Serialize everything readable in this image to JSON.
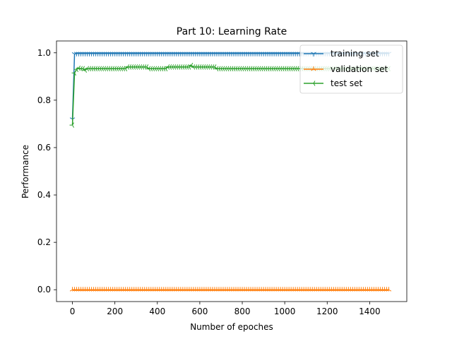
{
  "chart_data": {
    "type": "line",
    "title": "Part 10: Learning Rate",
    "xlabel": "Number of epoches",
    "ylabel": "Performance",
    "xlim": [
      -75,
      1575
    ],
    "ylim": [
      -0.05,
      1.05
    ],
    "xticks": [
      0,
      200,
      400,
      600,
      800,
      1000,
      1200,
      1400
    ],
    "xtick_labels": [
      "0",
      "200",
      "400",
      "600",
      "800",
      "1000",
      "1200",
      "1400"
    ],
    "yticks": [
      0.0,
      0.2,
      0.4,
      0.6,
      0.8,
      1.0
    ],
    "ytick_labels": [
      "0.0",
      "0.2",
      "0.4",
      "0.6",
      "0.8",
      "1.0"
    ],
    "legend_position": "top-right",
    "series": [
      {
        "name": "training set",
        "color": "#1f77b4",
        "marker": "tri_down",
        "x": [
          0,
          10,
          20,
          30,
          40,
          50,
          60,
          70,
          80,
          90,
          100,
          110,
          120,
          130,
          140,
          150,
          160,
          170,
          180,
          190,
          200,
          210,
          220,
          230,
          240,
          250,
          260,
          270,
          280,
          290,
          300,
          310,
          320,
          330,
          340,
          350,
          360,
          370,
          380,
          390,
          400,
          410,
          420,
          430,
          440,
          450,
          460,
          470,
          480,
          490,
          500,
          510,
          520,
          530,
          540,
          550,
          560,
          570,
          580,
          590,
          600,
          610,
          620,
          630,
          640,
          650,
          660,
          670,
          680,
          690,
          700,
          710,
          720,
          730,
          740,
          750,
          760,
          770,
          780,
          790,
          800,
          810,
          820,
          830,
          840,
          850,
          860,
          870,
          880,
          890,
          900,
          910,
          920,
          930,
          940,
          950,
          960,
          970,
          980,
          990,
          1000,
          1010,
          1020,
          1030,
          1040,
          1050,
          1060,
          1070,
          1080,
          1090,
          1100,
          1110,
          1120,
          1130,
          1140,
          1150,
          1160,
          1170,
          1180,
          1190,
          1200,
          1210,
          1220,
          1230,
          1240,
          1250,
          1260,
          1270,
          1280,
          1290,
          1300,
          1310,
          1320,
          1330,
          1340,
          1350,
          1360,
          1370,
          1380,
          1390,
          1400,
          1410,
          1420,
          1430,
          1440,
          1450,
          1460,
          1470,
          1480,
          1490
        ],
        "values": [
          0.72,
          0.995,
          0.997,
          0.997,
          0.997,
          0.997,
          0.997,
          0.997,
          0.997,
          0.997,
          0.997,
          0.997,
          0.997,
          0.997,
          0.997,
          0.997,
          0.997,
          0.997,
          0.997,
          0.997,
          0.997,
          0.997,
          0.997,
          0.997,
          0.997,
          0.997,
          0.997,
          0.997,
          0.997,
          0.997,
          0.997,
          0.997,
          0.997,
          0.997,
          0.997,
          0.997,
          0.997,
          0.997,
          0.997,
          0.997,
          0.997,
          0.997,
          0.997,
          0.997,
          0.997,
          0.997,
          0.997,
          0.997,
          0.997,
          0.997,
          0.997,
          0.997,
          0.997,
          0.997,
          0.997,
          0.997,
          0.997,
          0.997,
          0.997,
          0.997,
          0.997,
          0.997,
          0.997,
          0.997,
          0.997,
          0.997,
          0.997,
          0.997,
          0.997,
          0.997,
          0.997,
          0.997,
          0.997,
          0.997,
          0.997,
          0.997,
          0.997,
          0.997,
          0.997,
          0.997,
          0.997,
          0.997,
          0.997,
          0.997,
          0.997,
          0.997,
          0.997,
          0.997,
          0.997,
          0.997,
          0.997,
          0.997,
          0.997,
          0.997,
          0.997,
          0.997,
          0.997,
          0.997,
          0.997,
          0.997,
          0.997,
          0.997,
          0.997,
          0.997,
          0.997,
          0.997,
          0.997,
          0.997,
          0.997,
          0.997,
          0.997,
          0.997,
          0.997,
          0.997,
          0.997,
          0.997,
          0.997,
          0.997,
          0.997,
          0.997,
          0.997,
          0.997,
          0.997,
          0.997,
          0.997,
          0.997,
          0.997,
          0.997,
          0.997,
          0.997,
          0.997,
          0.997,
          0.997,
          0.997,
          0.997,
          0.997,
          0.997,
          0.997,
          0.997,
          0.997,
          0.997,
          0.997,
          0.997,
          0.997,
          0.997,
          0.997,
          0.997,
          0.997,
          0.997,
          0.997
        ]
      },
      {
        "name": "validation set",
        "color": "#ff7f0e",
        "marker": "tri_up",
        "x": [
          0,
          10,
          20,
          30,
          40,
          50,
          60,
          70,
          80,
          90,
          100,
          110,
          120,
          130,
          140,
          150,
          160,
          170,
          180,
          190,
          200,
          210,
          220,
          230,
          240,
          250,
          260,
          270,
          280,
          290,
          300,
          310,
          320,
          330,
          340,
          350,
          360,
          370,
          380,
          390,
          400,
          410,
          420,
          430,
          440,
          450,
          460,
          470,
          480,
          490,
          500,
          510,
          520,
          530,
          540,
          550,
          560,
          570,
          580,
          590,
          600,
          610,
          620,
          630,
          640,
          650,
          660,
          670,
          680,
          690,
          700,
          710,
          720,
          730,
          740,
          750,
          760,
          770,
          780,
          790,
          800,
          810,
          820,
          830,
          840,
          850,
          860,
          870,
          880,
          890,
          900,
          910,
          920,
          930,
          940,
          950,
          960,
          970,
          980,
          990,
          1000,
          1010,
          1020,
          1030,
          1040,
          1050,
          1060,
          1070,
          1080,
          1090,
          1100,
          1110,
          1120,
          1130,
          1140,
          1150,
          1160,
          1170,
          1180,
          1190,
          1200,
          1210,
          1220,
          1230,
          1240,
          1250,
          1260,
          1270,
          1280,
          1290,
          1300,
          1310,
          1320,
          1330,
          1340,
          1350,
          1360,
          1370,
          1380,
          1390,
          1400,
          1410,
          1420,
          1430,
          1440,
          1450,
          1460,
          1470,
          1480,
          1490
        ],
        "values": [
          0.0,
          0.0,
          0.0,
          0.0,
          0.0,
          0.0,
          0.0,
          0.0,
          0.0,
          0.0,
          0.0,
          0.0,
          0.0,
          0.0,
          0.0,
          0.0,
          0.0,
          0.0,
          0.0,
          0.0,
          0.0,
          0.0,
          0.0,
          0.0,
          0.0,
          0.0,
          0.0,
          0.0,
          0.0,
          0.0,
          0.0,
          0.0,
          0.0,
          0.0,
          0.0,
          0.0,
          0.0,
          0.0,
          0.0,
          0.0,
          0.0,
          0.0,
          0.0,
          0.0,
          0.0,
          0.0,
          0.0,
          0.0,
          0.0,
          0.0,
          0.0,
          0.0,
          0.0,
          0.0,
          0.0,
          0.0,
          0.0,
          0.0,
          0.0,
          0.0,
          0.0,
          0.0,
          0.0,
          0.0,
          0.0,
          0.0,
          0.0,
          0.0,
          0.0,
          0.0,
          0.0,
          0.0,
          0.0,
          0.0,
          0.0,
          0.0,
          0.0,
          0.0,
          0.0,
          0.0,
          0.0,
          0.0,
          0.0,
          0.0,
          0.0,
          0.0,
          0.0,
          0.0,
          0.0,
          0.0,
          0.0,
          0.0,
          0.0,
          0.0,
          0.0,
          0.0,
          0.0,
          0.0,
          0.0,
          0.0,
          0.0,
          0.0,
          0.0,
          0.0,
          0.0,
          0.0,
          0.0,
          0.0,
          0.0,
          0.0,
          0.0,
          0.0,
          0.0,
          0.0,
          0.0,
          0.0,
          0.0,
          0.0,
          0.0,
          0.0,
          0.0,
          0.0,
          0.0,
          0.0,
          0.0,
          0.0,
          0.0,
          0.0,
          0.0,
          0.0,
          0.0,
          0.0,
          0.0,
          0.0,
          0.0,
          0.0,
          0.0,
          0.0,
          0.0,
          0.0,
          0.0,
          0.0,
          0.0,
          0.0,
          0.0,
          0.0,
          0.0,
          0.0,
          0.0,
          0.0
        ]
      },
      {
        "name": "test set",
        "color": "#2ca02c",
        "marker": "tri_left",
        "x": [
          0,
          10,
          20,
          30,
          40,
          50,
          60,
          70,
          80,
          90,
          100,
          110,
          120,
          130,
          140,
          150,
          160,
          170,
          180,
          190,
          200,
          210,
          220,
          230,
          240,
          250,
          260,
          270,
          280,
          290,
          300,
          310,
          320,
          330,
          340,
          350,
          360,
          370,
          380,
          390,
          400,
          410,
          420,
          430,
          440,
          450,
          460,
          470,
          480,
          490,
          500,
          510,
          520,
          530,
          540,
          550,
          560,
          570,
          580,
          590,
          600,
          610,
          620,
          630,
          640,
          650,
          660,
          670,
          680,
          690,
          700,
          710,
          720,
          730,
          740,
          750,
          760,
          770,
          780,
          790,
          800,
          810,
          820,
          830,
          840,
          850,
          860,
          870,
          880,
          890,
          900,
          910,
          920,
          930,
          940,
          950,
          960,
          970,
          980,
          990,
          1000,
          1010,
          1020,
          1030,
          1040,
          1050,
          1060,
          1070,
          1080,
          1090,
          1100,
          1110,
          1120,
          1130,
          1140,
          1150,
          1160,
          1170,
          1180,
          1190,
          1200,
          1210,
          1220,
          1230,
          1240,
          1250,
          1260,
          1270,
          1280,
          1290,
          1300,
          1310,
          1320,
          1330,
          1340,
          1350,
          1360,
          1370,
          1380,
          1390,
          1400,
          1410,
          1420,
          1430,
          1440,
          1450,
          1460,
          1470,
          1480,
          1490
        ],
        "values": [
          0.695,
          0.915,
          0.93,
          0.935,
          0.933,
          0.933,
          0.927,
          0.933,
          0.933,
          0.933,
          0.933,
          0.933,
          0.933,
          0.933,
          0.933,
          0.933,
          0.933,
          0.933,
          0.933,
          0.933,
          0.933,
          0.933,
          0.933,
          0.933,
          0.933,
          0.933,
          0.94,
          0.94,
          0.94,
          0.94,
          0.94,
          0.94,
          0.94,
          0.94,
          0.94,
          0.94,
          0.933,
          0.933,
          0.933,
          0.933,
          0.933,
          0.933,
          0.933,
          0.933,
          0.933,
          0.94,
          0.94,
          0.94,
          0.94,
          0.94,
          0.94,
          0.94,
          0.94,
          0.94,
          0.94,
          0.94,
          0.947,
          0.94,
          0.94,
          0.94,
          0.94,
          0.94,
          0.94,
          0.94,
          0.94,
          0.94,
          0.94,
          0.94,
          0.933,
          0.933,
          0.933,
          0.933,
          0.933,
          0.933,
          0.933,
          0.933,
          0.933,
          0.933,
          0.933,
          0.933,
          0.933,
          0.933,
          0.933,
          0.933,
          0.933,
          0.933,
          0.933,
          0.933,
          0.933,
          0.933,
          0.933,
          0.933,
          0.933,
          0.933,
          0.933,
          0.933,
          0.933,
          0.933,
          0.933,
          0.933,
          0.933,
          0.933,
          0.933,
          0.933,
          0.933,
          0.933,
          0.933,
          0.933,
          0.933,
          0.933,
          0.933,
          0.933,
          0.933,
          0.933,
          0.933,
          0.933,
          0.933,
          0.933,
          0.933,
          0.933,
          0.933,
          0.933,
          0.933,
          0.933,
          0.933,
          0.933,
          0.933,
          0.933,
          0.933,
          0.933,
          0.933,
          0.933,
          0.933,
          0.933,
          0.933,
          0.933,
          0.933,
          0.933,
          0.933,
          0.933,
          0.933,
          0.933,
          0.933,
          0.933,
          0.933,
          0.933,
          0.933,
          0.933,
          0.933,
          0.933
        ]
      }
    ]
  }
}
